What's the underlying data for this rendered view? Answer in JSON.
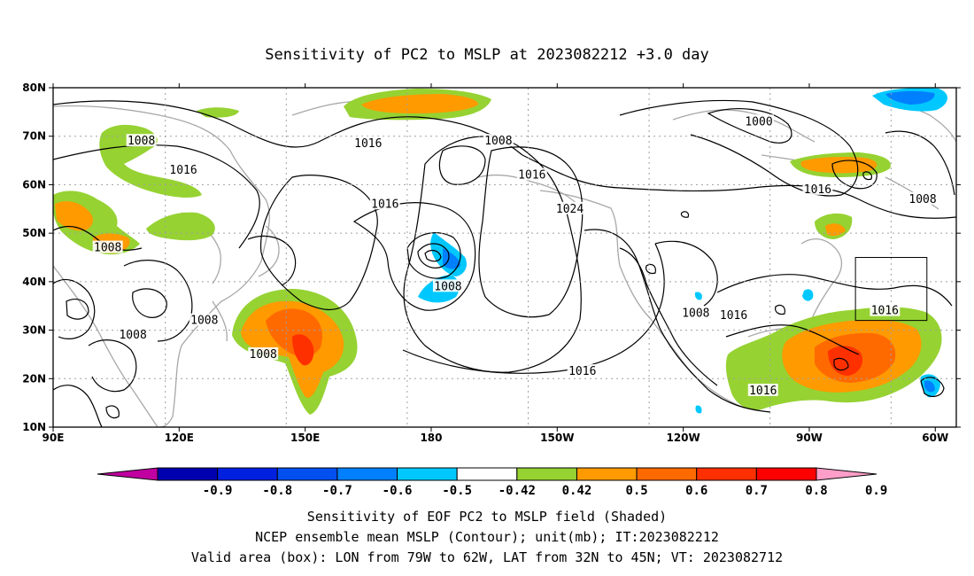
{
  "title": "Sensitivity of PC2 to MSLP at 2023082212 +3.0 day",
  "map": {
    "lon_min": 90,
    "lon_max": 305,
    "lat_min": 10,
    "lat_max": 80,
    "lat_ticks": [
      {
        "lat": 80,
        "label": "80N"
      },
      {
        "lat": 70,
        "label": "70N"
      },
      {
        "lat": 60,
        "label": "60N"
      },
      {
        "lat": 50,
        "label": "50N"
      },
      {
        "lat": 40,
        "label": "40N"
      },
      {
        "lat": 30,
        "label": "30N"
      },
      {
        "lat": 20,
        "label": "20N"
      },
      {
        "lat": 10,
        "label": "10N"
      }
    ],
    "lon_ticks": [
      {
        "lon": 90,
        "label": "90E"
      },
      {
        "lon": 120,
        "label": "120E"
      },
      {
        "lon": 150,
        "label": "150E"
      },
      {
        "lon": 180,
        "label": "180"
      },
      {
        "lon": 210,
        "label": "150W"
      },
      {
        "lon": 240,
        "label": "120W"
      },
      {
        "lon": 270,
        "label": "90W"
      },
      {
        "lon": 300,
        "label": "60W"
      }
    ],
    "valid_box": {
      "lon_w": 281,
      "lon_e": 298,
      "lat_s": 32,
      "lat_n": 45
    },
    "contour_labels": [
      {
        "text": "1008",
        "lon": 111,
        "lat": 69
      },
      {
        "text": "1016",
        "lon": 121,
        "lat": 63
      },
      {
        "text": "1016",
        "lon": 165,
        "lat": 68.5
      },
      {
        "text": "1008",
        "lon": 196,
        "lat": 69
      },
      {
        "text": "1016",
        "lon": 204,
        "lat": 62
      },
      {
        "text": "1000",
        "lon": 258,
        "lat": 73
      },
      {
        "text": "1016",
        "lon": 272,
        "lat": 59
      },
      {
        "text": "1008",
        "lon": 297,
        "lat": 57
      },
      {
        "text": "1016",
        "lon": 169,
        "lat": 56
      },
      {
        "text": "1024",
        "lon": 213,
        "lat": 55
      },
      {
        "text": "1008",
        "lon": 103,
        "lat": 47
      },
      {
        "text": "1008",
        "lon": 184,
        "lat": 39
      },
      {
        "text": "1008",
        "lon": 126,
        "lat": 32
      },
      {
        "text": "1008",
        "lon": 109,
        "lat": 29
      },
      {
        "text": "1008",
        "lon": 140,
        "lat": 25
      },
      {
        "text": "1008",
        "lon": 243,
        "lat": 33.5
      },
      {
        "text": "1016",
        "lon": 252,
        "lat": 33
      },
      {
        "text": "1016",
        "lon": 288,
        "lat": 34
      },
      {
        "text": "1016",
        "lon": 216,
        "lat": 21.5
      },
      {
        "text": "1016",
        "lon": 259,
        "lat": 17.5
      }
    ]
  },
  "colorbar": {
    "ticks": [
      "-0.9",
      "-0.8",
      "-0.7",
      "-0.6",
      "-0.5",
      "-0.42",
      "0.42",
      "0.5",
      "0.6",
      "0.7",
      "0.8",
      "0.9"
    ],
    "colors": [
      "#c000a0",
      "#0000b0",
      "#0020e0",
      "#0050f0",
      "#0080ff",
      "#00c8ff",
      "#ffffff",
      "#96d232",
      "#ff9a00",
      "#ff6a00",
      "#ff3000",
      "#ff0000",
      "#ff9ec8"
    ]
  },
  "colors": {
    "green": "#96d232",
    "orange": "#ff9a00",
    "orange_red": "#ff6a00",
    "red": "#ff3000",
    "cyan": "#00c8ff",
    "blue": "#0080ff"
  },
  "footer": {
    "line1": "Sensitivity of EOF PC2 to MSLP field (Shaded)",
    "line2": "NCEP ensemble mean MSLP (Contour); unit(mb); IT:2023082212",
    "line3": "Valid area (box): LON from 79W to 62W, LAT from 32N to 45N; VT: 2023082712"
  }
}
